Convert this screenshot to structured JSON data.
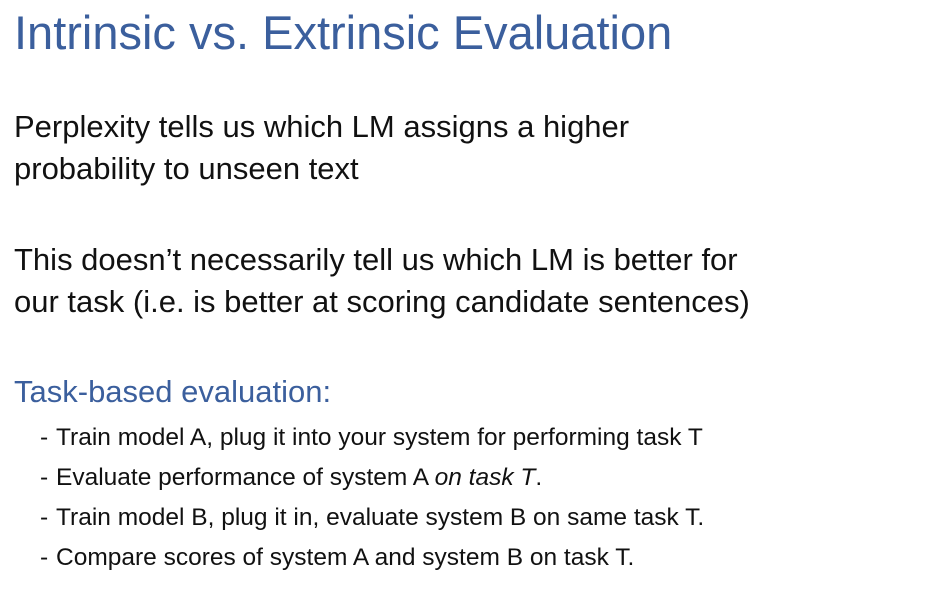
{
  "slide": {
    "title": "Intrinsic vs. Extrinsic Evaluation",
    "paragraph1": {
      "line1": "Perplexity tells us which LM assigns a higher",
      "line2": "probability to unseen text"
    },
    "paragraph2": {
      "line1": "This doesn’t necessarily tell us which LM is better for",
      "line2": "our task (i.e. is better at scoring candidate sentences)"
    },
    "section_heading": "Task-based evaluation:",
    "bullet_marker": "-",
    "bullets": [
      {
        "text": "Train model A, plug it into your system for performing task T"
      },
      {
        "text": "Evaluate performance of system A ",
        "italic": "on task T",
        "tail": "."
      },
      {
        "text": "Train model B, plug it in, evaluate system B on same task T."
      },
      {
        "text": "Compare scores of system A and system B on task T."
      }
    ]
  },
  "colors": {
    "heading": "#3b5f9d",
    "body_text": "#111111",
    "background": "#ffffff"
  }
}
